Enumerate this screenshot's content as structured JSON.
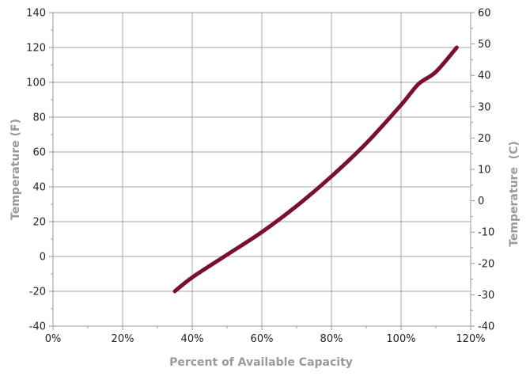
{
  "chart_data": {
    "type": "line",
    "title": "",
    "xlabel": "Percent of Available Capacity",
    "ylabel": "Temperature (F)",
    "y2label": "Temperature  (C)",
    "xlim": [
      0,
      120
    ],
    "ylim": [
      -40,
      140
    ],
    "y2lim": [
      -40,
      60
    ],
    "x_ticks": [
      0,
      20,
      40,
      60,
      80,
      100,
      120
    ],
    "x_tick_labels": [
      "0%",
      "20%",
      "40%",
      "60%",
      "80%",
      "100%",
      "120%"
    ],
    "y_ticks": [
      -40,
      -20,
      0,
      20,
      40,
      60,
      80,
      100,
      120,
      140
    ],
    "y_tick_labels": [
      "-40",
      "-20",
      "0",
      "20",
      "40",
      "60",
      "80",
      "100",
      "120",
      "140"
    ],
    "y2_ticks": [
      -40,
      -30,
      -20,
      -10,
      0,
      10,
      20,
      30,
      40,
      50,
      60
    ],
    "y2_tick_labels": [
      "-40",
      "-30",
      "-20",
      "-10",
      "0",
      "10",
      "20",
      "30",
      "40",
      "50",
      "60"
    ],
    "grid": true,
    "colors": {
      "line": "#7a1030",
      "grid": "#a6a6a6",
      "axis": "#9a9a9a"
    },
    "series": [
      {
        "x": [
          35,
          40,
          50,
          60,
          70,
          80,
          90,
          100,
          105,
          110,
          116
        ],
        "y": [
          -20,
          -12,
          1,
          14,
          29,
          46,
          65,
          87,
          99,
          106,
          120
        ]
      }
    ]
  }
}
